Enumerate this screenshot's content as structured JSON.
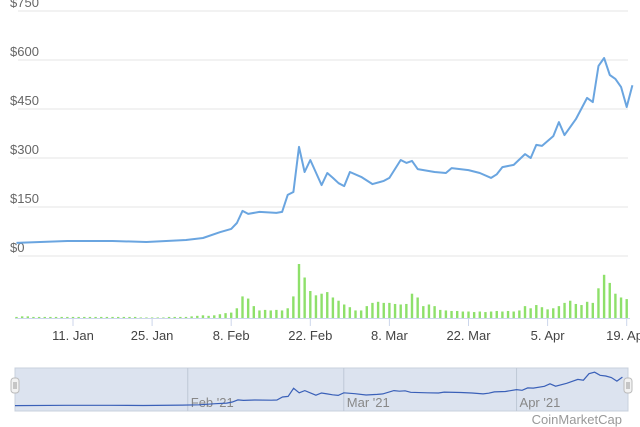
{
  "chart_data": {
    "type": "line",
    "ylim": [
      0,
      750
    ],
    "yticks": [
      "$0",
      "$150",
      "$300",
      "$450",
      "$600",
      "$750"
    ],
    "ytick_values": [
      0,
      150,
      300,
      450,
      600,
      750
    ],
    "xticks": [
      "11. Jan",
      "25. Jan",
      "8. Feb",
      "22. Feb",
      "8. Mar",
      "22. Mar",
      "5. Apr",
      "19. Apr"
    ],
    "xtick_dates": [
      "2021-01-11",
      "2021-01-25",
      "2021-02-08",
      "2021-02-22",
      "2021-03-08",
      "2021-03-22",
      "2021-04-05",
      "2021-04-19"
    ],
    "grid": true,
    "colors": {
      "price": "#6aa5e0",
      "volume": "#8ee06a",
      "navigator_line": "#3a60b8",
      "navigator_bg": "#dce3ef"
    },
    "price": {
      "dates": [
        "2021-01-01",
        "2021-01-10",
        "2021-01-18",
        "2021-01-24",
        "2021-01-31",
        "2021-02-03",
        "2021-02-06",
        "2021-02-08",
        "2021-02-09",
        "2021-02-10",
        "2021-02-11",
        "2021-02-13",
        "2021-02-16",
        "2021-02-17",
        "2021-02-18",
        "2021-02-19",
        "2021-02-20",
        "2021-02-21",
        "2021-02-22",
        "2021-02-24",
        "2021-02-25",
        "2021-02-26",
        "2021-02-27",
        "2021-02-28",
        "2021-03-01",
        "2021-03-03",
        "2021-03-05",
        "2021-03-07",
        "2021-03-08",
        "2021-03-10",
        "2021-03-11",
        "2021-03-12",
        "2021-03-13",
        "2021-03-16",
        "2021-03-18",
        "2021-03-19",
        "2021-03-22",
        "2021-03-24",
        "2021-03-26",
        "2021-03-27",
        "2021-03-28",
        "2021-03-30",
        "2021-04-01",
        "2021-04-02",
        "2021-04-03",
        "2021-04-04",
        "2021-04-06",
        "2021-04-07",
        "2021-04-08",
        "2021-04-10",
        "2021-04-12",
        "2021-04-13",
        "2021-04-14",
        "2021-04-15",
        "2021-04-16",
        "2021-04-17",
        "2021-04-18",
        "2021-04-19",
        "2021-04-20"
      ],
      "values": [
        40,
        46,
        46,
        43,
        49,
        55,
        73,
        83,
        101,
        138,
        129,
        135,
        132,
        135,
        187,
        196,
        334,
        257,
        294,
        217,
        254,
        239,
        223,
        214,
        257,
        242,
        220,
        230,
        239,
        294,
        285,
        291,
        266,
        257,
        254,
        269,
        263,
        254,
        239,
        250,
        272,
        279,
        312,
        300,
        340,
        337,
        367,
        410,
        370,
        419,
        484,
        471,
        582,
        606,
        554,
        542,
        517,
        456,
        523
      ]
    },
    "volume": {
      "start_date": "2021-01-01",
      "values": [
        2,
        3,
        3,
        2,
        2,
        2,
        2,
        2,
        2,
        2,
        2,
        2,
        2,
        2,
        2,
        2,
        2,
        2,
        2,
        2,
        2,
        2,
        1,
        1,
        1,
        1,
        1,
        2,
        2,
        2,
        2,
        3,
        4,
        5,
        4,
        5,
        7,
        9,
        10,
        18,
        40,
        36,
        22,
        14,
        15,
        14,
        15,
        14,
        18,
        40,
        100,
        75,
        50,
        42,
        45,
        48,
        38,
        32,
        25,
        20,
        14,
        14,
        22,
        28,
        30,
        28,
        28,
        26,
        25,
        26,
        45,
        38,
        22,
        25,
        22,
        15,
        14,
        13,
        13,
        12,
        12,
        11,
        12,
        11,
        12,
        13,
        12,
        13,
        12,
        14,
        22,
        18,
        24,
        20,
        16,
        18,
        22,
        28,
        32,
        26,
        24,
        30,
        28,
        55,
        80,
        65,
        45,
        38,
        35,
        38
      ]
    },
    "navigator": {
      "labels": [
        "Feb '21",
        "Mar '21",
        "Apr '21"
      ],
      "label_dates": [
        "2021-02-01",
        "2021-03-01",
        "2021-04-01"
      ]
    },
    "watermark": "CoinMarketCap"
  }
}
